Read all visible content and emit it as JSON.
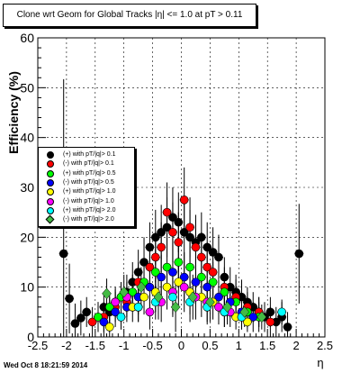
{
  "title": "Clone wrt Geom for Global Tracks |η| <= 1.0 at pT > 0.11",
  "timestamp": "Wed Oct  8 18:21:59 2014",
  "chart_data": {
    "type": "scatter",
    "title": "Clone wrt Geom for Global Tracks |η| <= 1.0 at pT > 0.11",
    "xlabel": "η",
    "ylabel": "Efficiency (%)",
    "xlim": [
      -2.5,
      2.5
    ],
    "ylim": [
      0,
      60
    ],
    "x_ticks": [
      "-2.5",
      "-2",
      "-1.5",
      "-1",
      "-0.5",
      "0",
      "0.5",
      "1",
      "1.5",
      "2",
      "2.5"
    ],
    "y_ticks": [
      "0",
      "10",
      "20",
      "30",
      "40",
      "50",
      "60"
    ],
    "grid": true,
    "legend_position": "middle-left",
    "series": [
      {
        "name": "(+) with pT/|q|> 0.1",
        "color": "#000000",
        "marker": "circle",
        "x": [
          -2.05,
          -1.95,
          -1.85,
          -1.75,
          -1.65,
          -1.45,
          -1.35,
          -1.25,
          -1.15,
          -1.05,
          -0.95,
          -0.85,
          -0.75,
          -0.65,
          -0.55,
          -0.45,
          -0.35,
          -0.25,
          -0.15,
          -0.05,
          0.05,
          0.15,
          0.25,
          0.35,
          0.45,
          0.55,
          0.65,
          0.75,
          0.85,
          0.95,
          1.05,
          1.15,
          1.25,
          1.35,
          1.45,
          1.55,
          1.65,
          1.75,
          1.85,
          2.05
        ],
        "y": [
          16.7,
          7.7,
          2.7,
          3.8,
          5.0,
          4.0,
          6.0,
          5.0,
          7.0,
          8.0,
          9.0,
          11.0,
          13.0,
          15.0,
          18.0,
          20.0,
          21.0,
          22.0,
          24.0,
          23.0,
          21.0,
          20.0,
          19.0,
          20.0,
          18.0,
          17.0,
          16.0,
          12.0,
          10.0,
          9.0,
          8.0,
          7.0,
          6.0,
          5.0,
          4.0,
          5.0,
          3.0,
          4.0,
          2.0,
          16.7
        ],
        "yerr": [
          35.0,
          7.0,
          4.0,
          3.5,
          3.0,
          3.0,
          3.0,
          3.0,
          3.0,
          3.0,
          3.5,
          4.0,
          4.5,
          5.0,
          5.0,
          5.5,
          5.5,
          6.0,
          6.0,
          6.0,
          6.0,
          5.5,
          5.5,
          5.0,
          5.0,
          5.0,
          4.5,
          4.0,
          4.0,
          3.5,
          3.5,
          3.0,
          3.0,
          3.0,
          3.0,
          3.0,
          3.0,
          3.0,
          3.0,
          10.0
        ]
      },
      {
        "name": "(-) with pT/|q|> 0.1",
        "color": "#ff0000",
        "marker": "circle",
        "x": [
          -1.55,
          -1.35,
          -1.15,
          -0.95,
          -0.75,
          -0.55,
          -0.45,
          -0.35,
          -0.25,
          -0.15,
          -0.05,
          0.05,
          0.15,
          0.25,
          0.35,
          0.45,
          0.55,
          0.75,
          0.95,
          1.15,
          1.35,
          1.55
        ],
        "y": [
          3.0,
          4.0,
          6.0,
          7.0,
          11.0,
          14.0,
          16.0,
          18.0,
          25.0,
          21.0,
          19.0,
          27.5,
          22.0,
          18.0,
          16.0,
          14.0,
          13.0,
          10.0,
          8.0,
          6.0,
          5.0,
          3.0
        ],
        "yerr": [
          3.0,
          3.0,
          3.0,
          3.0,
          4.0,
          4.5,
          5.0,
          5.0,
          6.0,
          6.0,
          6.0,
          6.5,
          6.0,
          5.5,
          5.0,
          5.0,
          4.5,
          4.0,
          3.5,
          3.0,
          3.0,
          3.0
        ]
      },
      {
        "name": "(+) with pT/|q|> 0.5",
        "color": "#00ff00",
        "marker": "circle",
        "x": [
          -1.45,
          -1.25,
          -1.05,
          -0.85,
          -0.65,
          -0.45,
          -0.25,
          -0.05,
          0.15,
          0.35,
          0.55,
          0.75,
          0.95,
          1.15,
          1.35
        ],
        "y": [
          4.0,
          6.0,
          8.0,
          9.0,
          11.0,
          13.0,
          14.0,
          15.0,
          14.0,
          12.0,
          11.0,
          9.0,
          7.0,
          5.0,
          4.0
        ],
        "yerr": [
          3.0,
          3.0,
          3.0,
          3.5,
          4.0,
          4.5,
          5.0,
          5.0,
          5.0,
          4.5,
          4.0,
          3.5,
          3.0,
          3.0,
          3.0
        ]
      },
      {
        "name": "(-) with pT/|q|> 0.5",
        "color": "#0000ff",
        "marker": "circle",
        "x": [
          -1.35,
          -1.15,
          -0.95,
          -0.75,
          -0.55,
          -0.35,
          -0.15,
          0.05,
          0.25,
          0.45,
          0.65,
          0.85,
          1.05,
          1.25
        ],
        "y": [
          3.0,
          5.0,
          6.0,
          8.0,
          10.0,
          12.0,
          13.0,
          12.0,
          11.0,
          10.0,
          8.0,
          7.0,
          5.0,
          4.0
        ],
        "yerr": [
          3.0,
          3.0,
          3.0,
          3.5,
          4.0,
          4.5,
          5.0,
          5.0,
          4.5,
          4.0,
          3.5,
          3.0,
          3.0,
          3.0
        ]
      },
      {
        "name": "(+) with pT/|q|> 1.0",
        "color": "#ffff00",
        "marker": "circle",
        "x": [
          -1.25,
          -1.05,
          -0.85,
          -0.65,
          -0.45,
          -0.25,
          -0.05,
          0.15,
          0.35,
          0.55,
          0.75,
          0.95,
          1.15
        ],
        "y": [
          2.0,
          4.0,
          6.0,
          8.0,
          9.0,
          10.0,
          11.0,
          9.0,
          8.0,
          7.0,
          5.0,
          4.0,
          3.0
        ],
        "yerr": [
          2.0,
          2.5,
          3.0,
          3.5,
          4.0,
          4.5,
          5.0,
          4.5,
          4.0,
          3.5,
          3.0,
          2.5,
          2.0
        ]
      },
      {
        "name": "(-) with pT/|q|> 1.0",
        "color": "#ff00ff",
        "marker": "circle",
        "x": [
          -1.15,
          -0.95,
          -0.75,
          -0.55,
          -0.35,
          -0.15,
          0.05,
          0.25,
          0.45,
          0.65,
          0.85,
          1.05
        ],
        "y": [
          7.0,
          8.0,
          6.0,
          5.0,
          7.0,
          9.0,
          10.0,
          8.0,
          7.0,
          6.0,
          5.0,
          4.0
        ],
        "yerr": [
          2.5,
          3.0,
          3.0,
          3.5,
          4.0,
          4.5,
          5.0,
          4.5,
          4.0,
          3.5,
          3.0,
          2.5
        ]
      },
      {
        "name": "(+) with pT/|q|> 2.0",
        "color": "#00ffff",
        "marker": "circle",
        "x": [
          -1.05,
          -0.75,
          -0.45,
          -0.15,
          0.15,
          0.45,
          0.75,
          1.05,
          1.75
        ],
        "y": [
          4.0,
          6.0,
          7.0,
          8.0,
          7.0,
          6.0,
          5.0,
          4.0,
          5.0
        ],
        "yerr": [
          2.5,
          3.0,
          3.5,
          4.0,
          4.0,
          3.5,
          3.0,
          2.5,
          2.5
        ]
      },
      {
        "name": "(-) with pT/|q|> 2.0",
        "color": "#44bb44",
        "marker": "diamond",
        "x": [
          -1.3,
          -1.0,
          -0.7,
          -0.4,
          -0.1,
          0.2,
          0.5,
          0.8,
          1.1,
          1.4
        ],
        "y": [
          8.7,
          9.0,
          10.0,
          8.0,
          6.0,
          8.0,
          7.0,
          6.0,
          5.0,
          4.0
        ],
        "yerr": [
          3.0,
          3.5,
          4.0,
          4.5,
          5.0,
          4.5,
          4.0,
          3.5,
          3.0,
          2.5
        ]
      }
    ]
  }
}
